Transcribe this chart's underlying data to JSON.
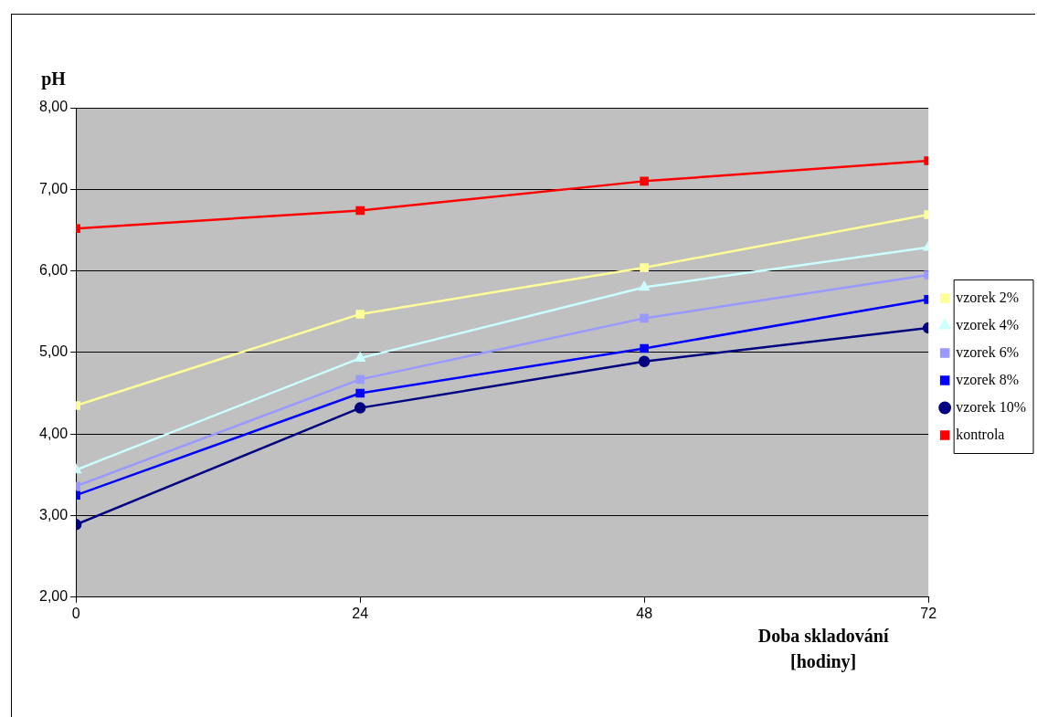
{
  "chart_data": {
    "type": "line",
    "ylabel": "pH",
    "xlabel": "Doba skladování [hodiny]",
    "x": [
      0,
      24,
      48,
      72
    ],
    "xlim": [
      0,
      72
    ],
    "xticks": [
      0,
      24,
      48,
      72
    ],
    "ylim": [
      2,
      8
    ],
    "yticks": [
      {
        "value": 2,
        "label": "2,00"
      },
      {
        "value": 3,
        "label": "3,00"
      },
      {
        "value": 4,
        "label": "4,00"
      },
      {
        "value": 5,
        "label": "5,00"
      },
      {
        "value": 6,
        "label": "6,00"
      },
      {
        "value": 7,
        "label": "7,00"
      },
      {
        "value": 8,
        "label": "8,00"
      }
    ],
    "grid": "y",
    "legend": "right",
    "line_style": "solid",
    "series": [
      {
        "name": "vzorek 2%",
        "color": "#ffff99",
        "marker": "square",
        "values": [
          4.35,
          5.47,
          6.04,
          6.69
        ]
      },
      {
        "name": "vzorek 4%",
        "color": "#ccffff",
        "marker": "triangle",
        "values": [
          3.56,
          4.93,
          5.8,
          6.29
        ]
      },
      {
        "name": "vzorek 6%",
        "color": "#9999ff",
        "marker": "square",
        "values": [
          3.36,
          4.67,
          5.42,
          5.95
        ]
      },
      {
        "name": "vzorek 8%",
        "color": "#0000ff",
        "marker": "square",
        "values": [
          3.25,
          4.5,
          5.05,
          5.65
        ]
      },
      {
        "name": "vzorek 10%",
        "color": "#000080",
        "marker": "circle",
        "values": [
          2.89,
          4.32,
          4.89,
          5.3
        ]
      },
      {
        "name": "kontrola",
        "color": "#ff0000",
        "marker": "square",
        "values": [
          6.52,
          6.74,
          7.1,
          7.35
        ]
      }
    ]
  }
}
